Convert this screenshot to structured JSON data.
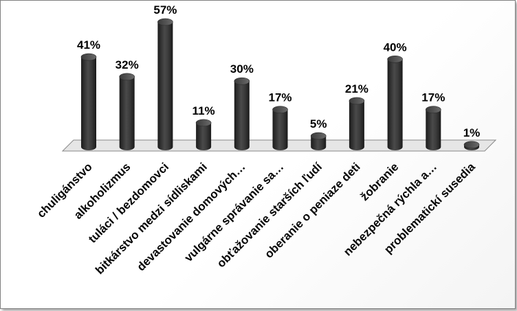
{
  "chart_data": {
    "type": "bar",
    "categories": [
      "chuligánstvo",
      "alkoholizmus",
      "tuláci / bezdomovci",
      "bitkárstvo medzi sídliskami",
      "devastovanie domových…",
      "vulgárne správanie sa…",
      "obťažovanie starších ľudí",
      "oberanie o peniaze deti",
      "žobranie",
      "nebezpečná rýchla a…",
      "problematickí susedia"
    ],
    "values": [
      41,
      32,
      57,
      11,
      30,
      17,
      5,
      21,
      40,
      17,
      1
    ],
    "data_labels": [
      "41%",
      "32%",
      "57%",
      "11%",
      "30%",
      "17%",
      "5%",
      "21%",
      "40%",
      "17%",
      "1%"
    ],
    "unit": "%",
    "ylim": [
      0,
      57
    ],
    "grid": false,
    "legend": "none",
    "style": "3d-cylinder",
    "colors": {
      "bar_dark": "#1c1c1c",
      "bar_mid": "#4a4a4a",
      "bar_light": "#6a6a6a",
      "floor_fill": "#e6e6e6",
      "floor_stroke": "#888888"
    }
  }
}
